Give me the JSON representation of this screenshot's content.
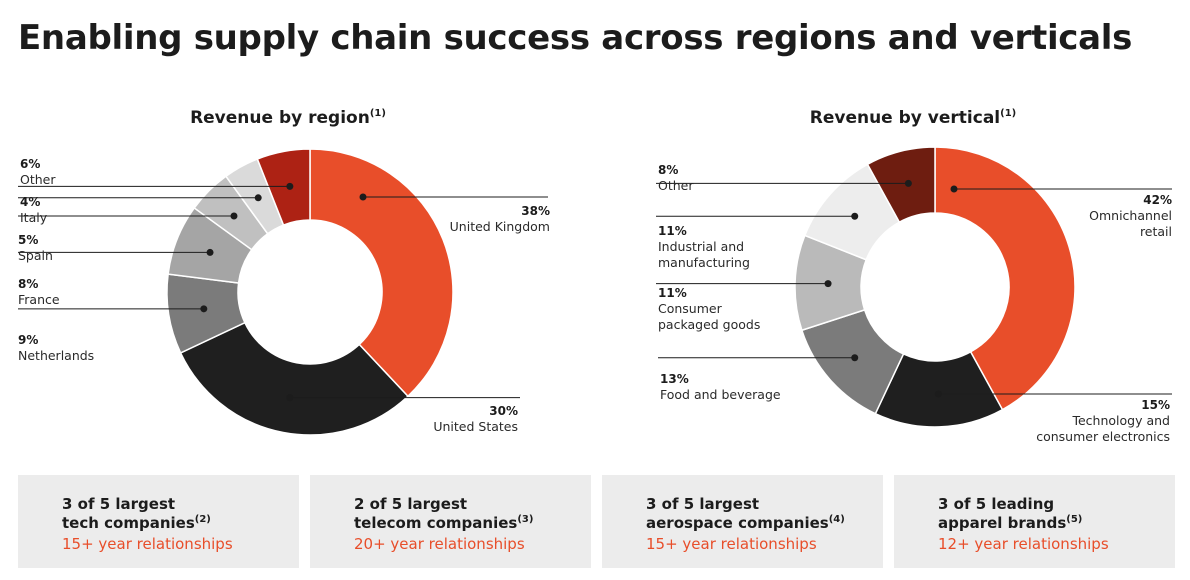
{
  "page": {
    "title": "Enabling supply chain success across regions and verticals"
  },
  "chart_data": [
    {
      "type": "pie",
      "title": "Revenue by region",
      "title_note": "(1)",
      "categories": [
        "United Kingdom",
        "United States",
        "Netherlands",
        "France",
        "Spain",
        "Italy",
        "Other"
      ],
      "values": [
        38,
        30,
        9,
        8,
        5,
        4,
        6
      ],
      "value_labels": [
        "38%",
        "30%",
        "9%",
        "8%",
        "5%",
        "4%",
        "6%"
      ],
      "colors": [
        "#e84e2a",
        "#1f1f1f",
        "#7b7b7b",
        "#a5a5a5",
        "#c0c0c0",
        "#dadada",
        "#ad2214"
      ],
      "unit": "%"
    },
    {
      "type": "pie",
      "title": "Revenue by vertical",
      "title_note": "(1)",
      "categories": [
        "Omnichannel retail",
        "Technology and consumer electronics",
        "Food and beverage",
        "Consumer packaged goods",
        "Industrial and manufacturing",
        "Other"
      ],
      "values": [
        42,
        15,
        13,
        11,
        11,
        8
      ],
      "value_labels": [
        "42%",
        "15%",
        "13%",
        "11%",
        "11%",
        "8%"
      ],
      "colors": [
        "#e84e2a",
        "#1f1f1f",
        "#7b7b7b",
        "#bababa",
        "#ededed",
        "#6e1d10"
      ],
      "unit": "%"
    }
  ],
  "chart_labels": {
    "region": [
      {
        "pct": "38%",
        "lines": [
          "United Kingdom"
        ]
      },
      {
        "pct": "30%",
        "lines": [
          "United States"
        ]
      },
      {
        "pct": "9%",
        "lines": [
          "Netherlands"
        ]
      },
      {
        "pct": "8%",
        "lines": [
          "France"
        ]
      },
      {
        "pct": "5%",
        "lines": [
          "Spain"
        ]
      },
      {
        "pct": "4%",
        "lines": [
          "Italy"
        ]
      },
      {
        "pct": "6%",
        "lines": [
          "Other"
        ]
      }
    ],
    "vertical": [
      {
        "pct": "42%",
        "lines": [
          "Omnichannel",
          "retail"
        ]
      },
      {
        "pct": "15%",
        "lines": [
          "Technology and",
          "consumer electronics"
        ]
      },
      {
        "pct": "13%",
        "lines": [
          "Food and beverage"
        ]
      },
      {
        "pct": "11%",
        "lines": [
          "Consumer",
          "packaged goods"
        ]
      },
      {
        "pct": "11%",
        "lines": [
          "Industrial and",
          "manufacturing"
        ]
      },
      {
        "pct": "8%",
        "lines": [
          "Other"
        ]
      }
    ]
  },
  "cards": [
    {
      "line1": "3 of 5 largest",
      "line2": "tech companies",
      "note": "(2)",
      "sub": "15+ year relationships"
    },
    {
      "line1": "2 of 5 largest",
      "line2": "telecom companies",
      "note": "(3)",
      "sub": "20+ year relationships"
    },
    {
      "line1": "3 of 5 largest",
      "line2": "aerospace companies",
      "note": "(4)",
      "sub": "15+ year relationships"
    },
    {
      "line1": "3 of 5 leading",
      "line2": "apparel brands",
      "note": "(5)",
      "sub": "12+ year relationships"
    }
  ],
  "colors": {
    "accent": "#e84e2a",
    "card_bg": "#ececec",
    "text": "#1c1c1c"
  }
}
